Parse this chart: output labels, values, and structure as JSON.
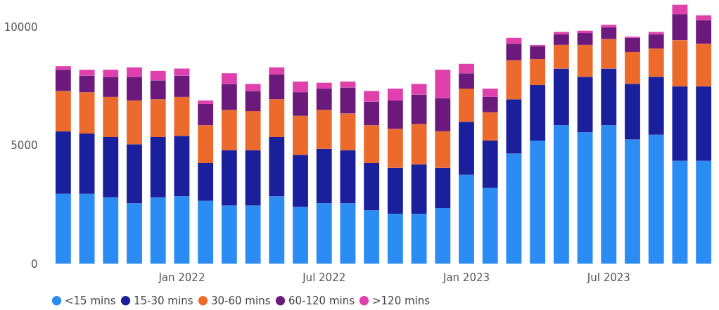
{
  "chart_data": {
    "type": "bar",
    "stacked": true,
    "categories": [
      null,
      null,
      null,
      null,
      null,
      "Jan 2022",
      null,
      null,
      null,
      null,
      null,
      "Jul 2022",
      null,
      null,
      null,
      null,
      null,
      "Jan 2023",
      null,
      null,
      null,
      null,
      null,
      "Jul 2023",
      null,
      null,
      null,
      null
    ],
    "series": [
      {
        "name": "<15 mins",
        "color": "#2b8cf3",
        "values": [
          2950,
          2950,
          2800,
          2550,
          2800,
          2850,
          2650,
          2450,
          2450,
          2850,
          2400,
          2550,
          2550,
          2250,
          2100,
          2100,
          2350,
          3750,
          3200,
          4650,
          5200,
          5850,
          5550,
          5850,
          5250,
          5450,
          4350,
          4350
        ]
      },
      {
        "name": "15-30 mins",
        "color": "#1a1f9c",
        "values": [
          2650,
          2550,
          2550,
          2500,
          2550,
          2550,
          1600,
          2350,
          2350,
          2500,
          2200,
          2300,
          2250,
          2000,
          1950,
          2100,
          1700,
          2250,
          2000,
          2300,
          2350,
          2400,
          2350,
          2400,
          2350,
          2450,
          3150,
          3150
        ]
      },
      {
        "name": "30-60 mins",
        "color": "#ec6a2c",
        "values": [
          1700,
          1750,
          1700,
          1850,
          1600,
          1650,
          1600,
          1700,
          1650,
          1600,
          1650,
          1650,
          1550,
          1600,
          1650,
          1700,
          1550,
          1400,
          1200,
          1650,
          1100,
          1000,
          1350,
          1250,
          1350,
          1200,
          1950,
          1800
        ]
      },
      {
        "name": "60-120 mins",
        "color": "#6b1a7c",
        "values": [
          900,
          700,
          850,
          1000,
          800,
          900,
          900,
          1100,
          850,
          1050,
          1000,
          900,
          1100,
          1000,
          1200,
          1250,
          1400,
          650,
          650,
          700,
          550,
          450,
          500,
          500,
          600,
          600,
          1100,
          1000
        ]
      },
      {
        "name": ">120 mins",
        "color": "#e040ac",
        "values": [
          150,
          250,
          300,
          400,
          400,
          300,
          150,
          450,
          300,
          300,
          450,
          250,
          250,
          450,
          500,
          450,
          1200,
          400,
          350,
          250,
          50,
          100,
          100,
          100,
          50,
          100,
          400,
          200
        ]
      }
    ],
    "ylim": [
      0,
      11000
    ],
    "yticks": [
      0,
      5000,
      10000
    ],
    "grid": false,
    "legend": "bottom",
    "marker": "circle"
  }
}
